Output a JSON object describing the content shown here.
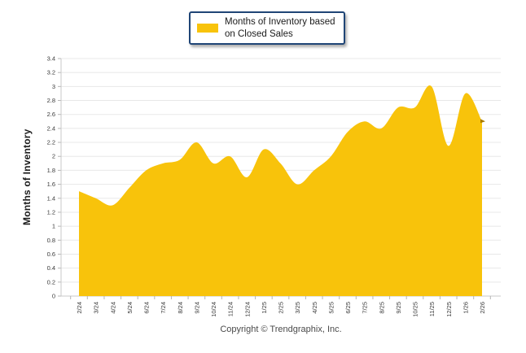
{
  "legend": {
    "label_line1": "Months of Inventory based",
    "label_line2": "on Closed Sales"
  },
  "y_axis": {
    "title": "Months of Inventory"
  },
  "footer": {
    "copyright": "Copyright © Trendgraphix, Inc."
  },
  "colors": {
    "series_fill": "#F8C30B",
    "legend_border": "#1F4576",
    "grid": "#E8E8E8",
    "axis_line": "#C9C9C9",
    "tick_mark": "#B5B5B5",
    "tick_text": "#3A3A3A",
    "end_marker": "#A97B00"
  },
  "chart_data": {
    "type": "area",
    "title": "",
    "xlabel": "",
    "ylabel": "Months of Inventory",
    "ylim": [
      0,
      3.4
    ],
    "ytick_step": 0.2,
    "grid": true,
    "legend_position": "top-center",
    "categories": [
      "2/24",
      "3/24",
      "4/24",
      "5/24",
      "6/24",
      "7/24",
      "8/24",
      "9/24",
      "10/24",
      "11/24",
      "12/24",
      "1/25",
      "2/25",
      "3/25",
      "4/25",
      "5/25",
      "6/25",
      "7/25",
      "8/25",
      "9/25",
      "10/25",
      "11/25",
      "12/25",
      "1/26",
      "2/26"
    ],
    "series": [
      {
        "name": "Months of Inventory based on Closed Sales",
        "values": [
          1.5,
          1.4,
          1.3,
          1.55,
          1.8,
          1.9,
          1.95,
          2.2,
          1.9,
          2.0,
          1.7,
          2.1,
          1.9,
          1.6,
          1.8,
          2.0,
          2.35,
          2.5,
          2.4,
          2.7,
          2.7,
          3.0,
          2.15,
          2.9,
          2.5
        ]
      }
    ]
  }
}
